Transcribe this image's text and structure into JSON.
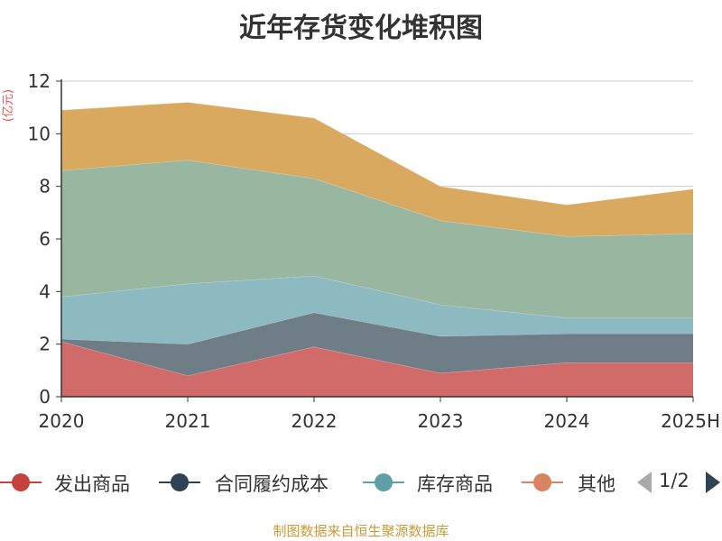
{
  "chart_data": {
    "type": "area",
    "stacked": true,
    "title": "近年存货变化堆积图",
    "ylabel": "(亿元)",
    "xlabel": "",
    "categories": [
      "2020",
      "2021",
      "2022",
      "2023",
      "2024",
      "2025H"
    ],
    "ylim": [
      0,
      12
    ],
    "yticks": [
      0,
      2,
      4,
      6,
      8,
      10,
      12
    ],
    "grid": true,
    "legend_position": "bottom",
    "series": [
      {
        "name": "发出商品",
        "values": [
          2.1,
          0.8,
          1.9,
          0.9,
          1.3,
          1.3
        ],
        "color": "#d06b69"
      },
      {
        "name": "合同履约成本",
        "values": [
          0.1,
          1.2,
          1.3,
          1.4,
          1.1,
          1.1
        ],
        "color": "#6f7d87"
      },
      {
        "name": "库存商品",
        "values": [
          1.6,
          2.3,
          1.4,
          1.2,
          0.6,
          0.6
        ],
        "color": "#8db9c0"
      },
      {
        "name": "其他",
        "values": [
          4.8,
          4.7,
          3.7,
          3.2,
          3.1,
          3.2
        ],
        "color": "#98b6a0"
      },
      {
        "name": "",
        "values": [
          2.3,
          2.2,
          2.3,
          1.3,
          1.2,
          1.7
        ],
        "color": "#d8a95f"
      }
    ]
  },
  "legend": {
    "items": [
      {
        "label": "发出商品",
        "color": "#c6403e"
      },
      {
        "label": "合同履约成本",
        "color": "#2e4454"
      },
      {
        "label": "库存商品",
        "color": "#5f9fa7"
      },
      {
        "label": "其他",
        "color": "#d98363"
      }
    ],
    "page_text": "1/2",
    "prev_color": "#aaaaaa",
    "next_color": "#2e4454"
  },
  "source": "制图数据来自恒生聚源数据库"
}
